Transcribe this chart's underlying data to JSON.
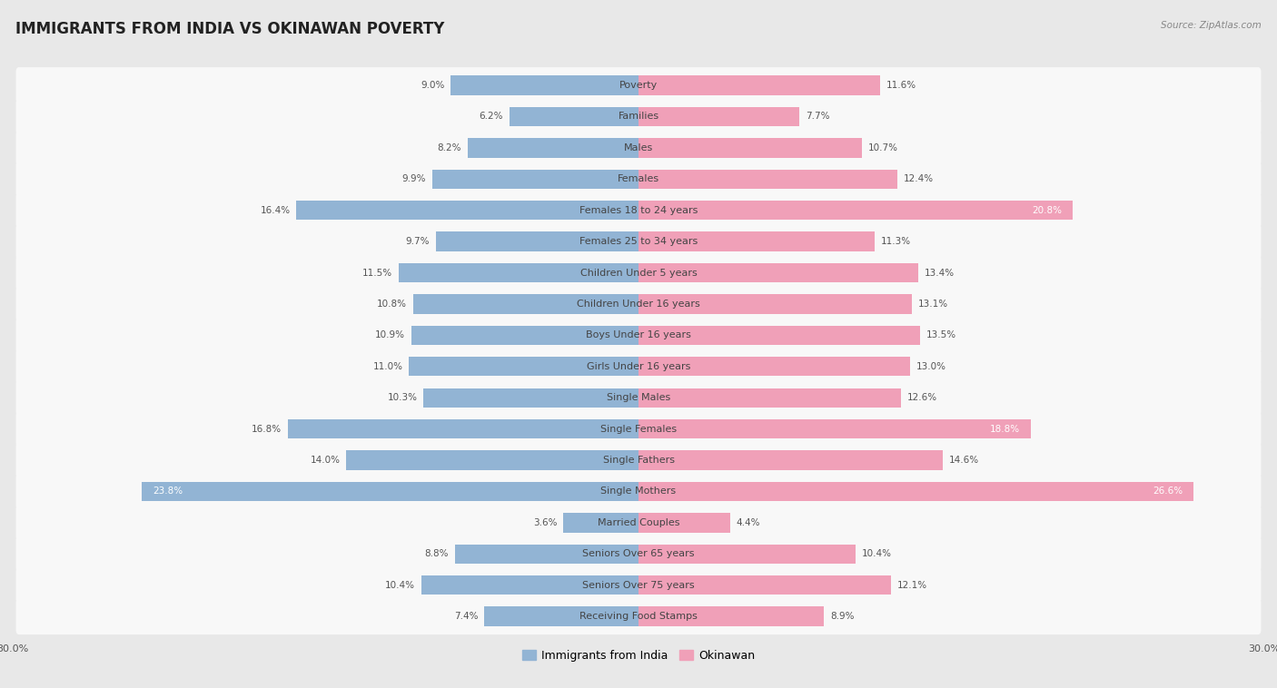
{
  "title": "IMMIGRANTS FROM INDIA VS OKINAWAN POVERTY",
  "source": "Source: ZipAtlas.com",
  "categories": [
    "Poverty",
    "Families",
    "Males",
    "Females",
    "Females 18 to 24 years",
    "Females 25 to 34 years",
    "Children Under 5 years",
    "Children Under 16 years",
    "Boys Under 16 years",
    "Girls Under 16 years",
    "Single Males",
    "Single Females",
    "Single Fathers",
    "Single Mothers",
    "Married Couples",
    "Seniors Over 65 years",
    "Seniors Over 75 years",
    "Receiving Food Stamps"
  ],
  "india_values": [
    9.0,
    6.2,
    8.2,
    9.9,
    16.4,
    9.7,
    11.5,
    10.8,
    10.9,
    11.0,
    10.3,
    16.8,
    14.0,
    23.8,
    3.6,
    8.8,
    10.4,
    7.4
  ],
  "okinawan_values": [
    11.6,
    7.7,
    10.7,
    12.4,
    20.8,
    11.3,
    13.4,
    13.1,
    13.5,
    13.0,
    12.6,
    18.8,
    14.6,
    26.6,
    4.4,
    10.4,
    12.1,
    8.9
  ],
  "india_color": "#92b4d4",
  "okinawan_color": "#f0a0b8",
  "highlight_india_color": "#6a9fc8",
  "highlight_okinawan_color": "#e8789a",
  "background_color": "#e8e8e8",
  "row_background": "#f8f8f8",
  "axis_max": 30.0,
  "bar_height": 0.62,
  "title_fontsize": 12,
  "label_fontsize": 8.0,
  "value_fontsize": 7.5,
  "tick_fontsize": 8,
  "legend_labels": [
    "Immigrants from India",
    "Okinawan"
  ],
  "white_label_threshold": 18.0
}
